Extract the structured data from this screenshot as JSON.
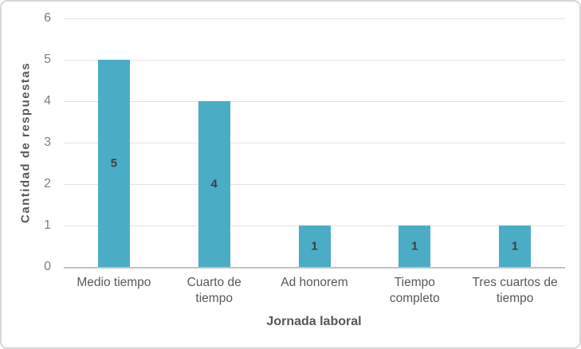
{
  "chart_data": {
    "type": "bar",
    "title": "",
    "categories": [
      "Medio tiempo",
      "Cuarto de tiempo",
      "Ad honorem",
      "Tiempo completo",
      "Tres cuartos de tiempo"
    ],
    "values": [
      5,
      4,
      1,
      1,
      1
    ],
    "data_labels": [
      "5",
      "4",
      "1",
      "1",
      "1"
    ],
    "xlabel": "Jornada laboral",
    "ylabel": "Cantidad de respuestas",
    "ylim": [
      0,
      6
    ],
    "y_ticks": [
      "0",
      "1",
      "2",
      "3",
      "4",
      "5",
      "6"
    ],
    "grid": "horizontal-only",
    "legend": "none",
    "colors": {
      "bar_fill": "#4bacc6",
      "gridline": "#e2e2e2",
      "axis_line": "#c2c2c2",
      "tick_label": "#7f7f7f",
      "category_label": "#595959",
      "axis_title": "#595959",
      "data_label": "#3f3f3f",
      "frame_border": "#d7d7d7",
      "background": "#ffffff"
    }
  }
}
